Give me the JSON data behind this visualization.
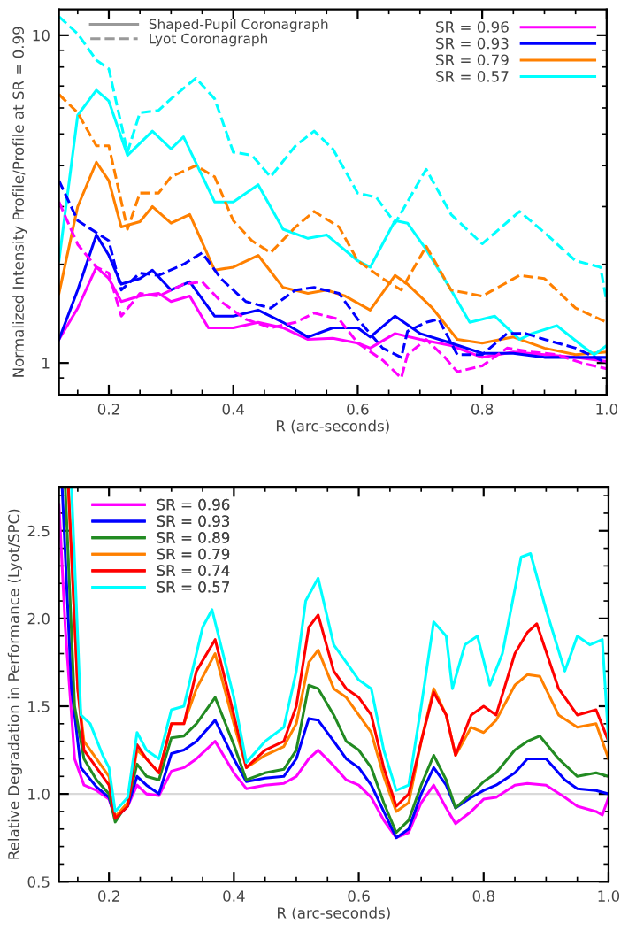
{
  "chart_data": [
    {
      "type": "line",
      "ylabel": "Normalized Intensity Profile/Profile at SR = 0.99",
      "xlabel": "R (arc-seconds)",
      "log": "y",
      "xlim": [
        0.12,
        1.0
      ],
      "ylim": [
        0.8,
        12
      ],
      "xticks": [
        0.2,
        0.4,
        0.6,
        0.8,
        {
          "value": 1,
          "label": "1.0"
        }
      ],
      "yticks": [
        1,
        10
      ],
      "grid": false,
      "legend": "top right",
      "annotations": [
        "Shaped-Pupil Coronagraph",
        "Lyot Coronagraph"
      ],
      "series": [
        {
          "name": "SR = 0.96",
          "color": "#ff00ff",
          "line_style": "solid",
          "x": [
            0.12,
            0.15,
            0.18,
            0.2,
            0.22,
            0.25,
            0.28,
            0.3,
            0.33,
            0.36,
            0.4,
            0.44,
            0.48,
            0.52,
            0.56,
            0.6,
            0.62,
            0.66,
            0.7,
            0.75,
            0.8,
            0.85,
            0.9,
            0.95,
            1.0
          ],
          "values": [
            1.18,
            1.47,
            1.96,
            1.81,
            1.54,
            1.6,
            1.63,
            1.54,
            1.6,
            1.28,
            1.28,
            1.33,
            1.28,
            1.18,
            1.19,
            1.15,
            1.11,
            1.23,
            1.18,
            1.13,
            1.04,
            1.08,
            1.06,
            1.04,
            1.01
          ]
        },
        {
          "name": "SR = 0.93",
          "color": "#0000ff",
          "line_style": "solid",
          "x": [
            0.12,
            0.15,
            0.18,
            0.2,
            0.22,
            0.25,
            0.27,
            0.3,
            0.33,
            0.37,
            0.4,
            0.44,
            0.48,
            0.52,
            0.56,
            0.6,
            0.62,
            0.66,
            0.7,
            0.75,
            0.8,
            0.85,
            0.9,
            0.95,
            1.0
          ],
          "values": [
            1.18,
            1.67,
            2.46,
            2.13,
            1.74,
            1.81,
            1.92,
            1.67,
            1.77,
            1.39,
            1.39,
            1.45,
            1.33,
            1.2,
            1.28,
            1.28,
            1.2,
            1.39,
            1.23,
            1.15,
            1.07,
            1.07,
            1.04,
            1.04,
            1.04
          ]
        },
        {
          "name": "SR = 0.79",
          "color": "#ff8000",
          "line_style": "solid",
          "x": [
            0.12,
            0.15,
            0.18,
            0.2,
            0.22,
            0.25,
            0.27,
            0.3,
            0.33,
            0.37,
            0.4,
            0.44,
            0.48,
            0.52,
            0.55,
            0.58,
            0.62,
            0.66,
            0.68,
            0.72,
            0.76,
            0.8,
            0.85,
            0.9,
            0.95,
            1.0
          ],
          "values": [
            1.63,
            3.0,
            4.1,
            3.6,
            2.6,
            2.7,
            3.0,
            2.67,
            2.84,
            1.92,
            1.96,
            2.13,
            1.7,
            1.63,
            1.67,
            1.6,
            1.45,
            1.85,
            1.74,
            1.47,
            1.18,
            1.15,
            1.2,
            1.11,
            1.06,
            1.08
          ]
        },
        {
          "name": "SR = 0.57",
          "color": "#00ffff",
          "line_style": "solid",
          "x": [
            0.12,
            0.15,
            0.18,
            0.2,
            0.23,
            0.27,
            0.3,
            0.32,
            0.37,
            0.4,
            0.44,
            0.48,
            0.52,
            0.55,
            0.6,
            0.62,
            0.66,
            0.68,
            0.71,
            0.75,
            0.78,
            0.82,
            0.86,
            0.88,
            0.92,
            0.96,
            0.98,
            1.0
          ],
          "values": [
            2.05,
            5.7,
            6.8,
            6.3,
            4.3,
            5.1,
            4.5,
            4.9,
            3.1,
            3.1,
            3.5,
            2.56,
            2.4,
            2.46,
            2.05,
            1.96,
            2.72,
            2.67,
            2.22,
            1.67,
            1.33,
            1.39,
            1.18,
            1.23,
            1.3,
            1.13,
            1.06,
            1.13
          ]
        },
        {
          "color": "#ff00ff",
          "line_style": "dashed",
          "x": [
            0.12,
            0.15,
            0.18,
            0.2,
            0.22,
            0.25,
            0.28,
            0.32,
            0.35,
            0.38,
            0.42,
            0.46,
            0.5,
            0.53,
            0.57,
            0.6,
            0.64,
            0.67,
            0.68,
            0.71,
            0.74,
            0.76,
            0.8,
            0.84,
            0.88,
            0.92,
            0.96,
            1.0
          ],
          "values": [
            3.1,
            2.3,
            1.96,
            1.88,
            1.39,
            1.63,
            1.6,
            1.74,
            1.77,
            1.54,
            1.36,
            1.28,
            1.33,
            1.42,
            1.36,
            1.15,
            1.02,
            0.9,
            1.06,
            1.18,
            1.04,
            0.94,
            0.98,
            1.11,
            1.08,
            1.06,
            1.0,
            0.96
          ]
        },
        {
          "color": "#0000ff",
          "line_style": "dashed",
          "x": [
            0.12,
            0.15,
            0.18,
            0.2,
            0.22,
            0.25,
            0.28,
            0.32,
            0.35,
            0.38,
            0.42,
            0.46,
            0.5,
            0.53,
            0.57,
            0.6,
            0.64,
            0.67,
            0.68,
            0.71,
            0.73,
            0.76,
            0.8,
            0.84,
            0.87,
            0.9,
            0.95,
            1.0
          ],
          "values": [
            3.6,
            2.72,
            2.5,
            2.36,
            1.67,
            1.88,
            1.85,
            2.0,
            2.17,
            1.81,
            1.54,
            1.47,
            1.67,
            1.7,
            1.63,
            1.36,
            1.11,
            1.04,
            1.25,
            1.33,
            1.36,
            1.06,
            1.06,
            1.23,
            1.23,
            1.18,
            1.11,
            1.0
          ]
        },
        {
          "color": "#ff8000",
          "line_style": "dashed",
          "x": [
            0.12,
            0.15,
            0.18,
            0.2,
            0.23,
            0.25,
            0.28,
            0.3,
            0.34,
            0.37,
            0.4,
            0.43,
            0.46,
            0.5,
            0.53,
            0.57,
            0.6,
            0.64,
            0.67,
            0.71,
            0.75,
            0.8,
            0.86,
            0.9,
            0.95,
            1.0
          ],
          "values": [
            6.6,
            5.8,
            4.6,
            4.6,
            2.56,
            3.3,
            3.3,
            3.7,
            4.0,
            3.7,
            2.72,
            2.36,
            2.17,
            2.6,
            2.9,
            2.6,
            2.05,
            1.81,
            1.67,
            2.27,
            1.67,
            1.6,
            1.85,
            1.81,
            1.47,
            1.33
          ]
        },
        {
          "color": "#00ffff",
          "line_style": "dashed",
          "x": [
            0.12,
            0.15,
            0.18,
            0.2,
            0.23,
            0.25,
            0.28,
            0.3,
            0.34,
            0.37,
            0.4,
            0.43,
            0.46,
            0.5,
            0.53,
            0.56,
            0.6,
            0.63,
            0.66,
            0.71,
            0.75,
            0.8,
            0.86,
            0.9,
            0.95,
            0.99,
            1.0
          ],
          "values": [
            11.4,
            10.1,
            8.4,
            7.9,
            4.4,
            5.8,
            5.9,
            6.4,
            7.4,
            6.4,
            4.4,
            4.3,
            3.7,
            4.6,
            5.1,
            4.5,
            3.3,
            3.2,
            2.67,
            3.9,
            2.84,
            2.31,
            2.9,
            2.5,
            2.05,
            1.96,
            1.54
          ]
        }
      ]
    },
    {
      "type": "line",
      "ylabel": "Relative Degradation in Performance (Lyot/SPC)",
      "xlabel": "R (arc-seconds)",
      "xlim": [
        0.12,
        1.0
      ],
      "ylim": [
        0.5,
        2.75
      ],
      "xticks": [
        0.2,
        0.4,
        0.6,
        0.8,
        {
          "value": 1,
          "label": "1.0"
        }
      ],
      "yticks": [
        0.5,
        {
          "value": 1,
          "label": "1.0"
        },
        1.5,
        {
          "value": 2,
          "label": "2.0"
        },
        2.5
      ],
      "grid": false,
      "legend": "top left",
      "ref_lines": [
        {
          "axis": "y",
          "value": 1.0,
          "color": "#d9d9d9"
        }
      ],
      "series": [
        {
          "name": "SR = 0.96",
          "color": "#ff00ff",
          "x": [
            0.12,
            0.13,
            0.145,
            0.16,
            0.18,
            0.2,
            0.21,
            0.23,
            0.245,
            0.26,
            0.28,
            0.3,
            0.32,
            0.34,
            0.37,
            0.4,
            0.42,
            0.45,
            0.48,
            0.5,
            0.52,
            0.535,
            0.56,
            0.58,
            0.6,
            0.62,
            0.64,
            0.66,
            0.68,
            0.7,
            0.72,
            0.74,
            0.755,
            0.78,
            0.8,
            0.82,
            0.85,
            0.87,
            0.9,
            0.93,
            0.95,
            0.98,
            0.99,
            1.0
          ],
          "values": [
            2.65,
            1.95,
            1.2,
            1.05,
            1.02,
            0.97,
            0.86,
            0.93,
            1.05,
            1.0,
            0.99,
            1.13,
            1.15,
            1.2,
            1.3,
            1.12,
            1.03,
            1.05,
            1.06,
            1.1,
            1.2,
            1.25,
            1.16,
            1.08,
            1.05,
            0.98,
            0.85,
            0.75,
            0.78,
            0.95,
            1.05,
            0.92,
            0.83,
            0.9,
            0.97,
            0.98,
            1.05,
            1.06,
            1.05,
            0.98,
            0.93,
            0.9,
            0.88,
            0.98
          ]
        },
        {
          "name": "SR = 0.93",
          "color": "#0000ff",
          "x": [
            0.125,
            0.14,
            0.155,
            0.18,
            0.2,
            0.21,
            0.23,
            0.245,
            0.26,
            0.28,
            0.3,
            0.32,
            0.34,
            0.37,
            0.4,
            0.42,
            0.45,
            0.48,
            0.5,
            0.52,
            0.535,
            0.56,
            0.58,
            0.6,
            0.62,
            0.64,
            0.66,
            0.68,
            0.7,
            0.72,
            0.74,
            0.755,
            0.78,
            0.8,
            0.82,
            0.85,
            0.87,
            0.9,
            0.93,
            0.95,
            0.98,
            1.0
          ],
          "values": [
            2.75,
            1.6,
            1.15,
            1.04,
            0.98,
            0.86,
            0.93,
            1.1,
            1.05,
            1.0,
            1.23,
            1.25,
            1.3,
            1.42,
            1.2,
            1.07,
            1.09,
            1.1,
            1.2,
            1.43,
            1.42,
            1.3,
            1.2,
            1.15,
            1.05,
            0.9,
            0.75,
            0.8,
            1.0,
            1.15,
            1.05,
            0.92,
            0.98,
            1.02,
            1.05,
            1.12,
            1.2,
            1.2,
            1.08,
            1.03,
            1.02,
            1.0
          ]
        },
        {
          "name": "SR = 0.89",
          "color": "#228b22",
          "x": [
            0.13,
            0.145,
            0.16,
            0.18,
            0.2,
            0.21,
            0.23,
            0.245,
            0.26,
            0.28,
            0.3,
            0.32,
            0.34,
            0.37,
            0.4,
            0.42,
            0.45,
            0.48,
            0.5,
            0.52,
            0.535,
            0.56,
            0.58,
            0.6,
            0.62,
            0.64,
            0.66,
            0.68,
            0.7,
            0.72,
            0.74,
            0.755,
            0.78,
            0.8,
            0.82,
            0.85,
            0.87,
            0.89,
            0.92,
            0.95,
            0.98,
            1.0
          ],
          "values": [
            2.75,
            1.5,
            1.2,
            1.08,
            1.0,
            0.84,
            0.95,
            1.17,
            1.1,
            1.08,
            1.32,
            1.33,
            1.4,
            1.55,
            1.28,
            1.08,
            1.12,
            1.14,
            1.25,
            1.62,
            1.6,
            1.45,
            1.3,
            1.25,
            1.15,
            0.95,
            0.78,
            0.85,
            1.05,
            1.22,
            1.08,
            0.92,
            1.0,
            1.07,
            1.12,
            1.25,
            1.3,
            1.33,
            1.2,
            1.1,
            1.12,
            1.1
          ]
        },
        {
          "name": "SR = 0.79",
          "color": "#ff8000",
          "x": [
            0.135,
            0.15,
            0.16,
            0.18,
            0.2,
            0.21,
            0.23,
            0.245,
            0.26,
            0.28,
            0.3,
            0.32,
            0.34,
            0.37,
            0.4,
            0.42,
            0.45,
            0.48,
            0.5,
            0.52,
            0.535,
            0.56,
            0.58,
            0.6,
            0.62,
            0.64,
            0.66,
            0.68,
            0.7,
            0.72,
            0.74,
            0.755,
            0.78,
            0.8,
            0.82,
            0.85,
            0.87,
            0.89,
            0.92,
            0.95,
            0.98,
            1.0
          ],
          "values": [
            2.75,
            1.6,
            1.3,
            1.2,
            1.1,
            0.87,
            0.95,
            1.25,
            1.2,
            1.12,
            1.4,
            1.4,
            1.6,
            1.8,
            1.4,
            1.15,
            1.22,
            1.27,
            1.4,
            1.75,
            1.82,
            1.6,
            1.55,
            1.45,
            1.35,
            1.1,
            0.9,
            0.95,
            1.3,
            1.6,
            1.45,
            1.22,
            1.38,
            1.35,
            1.42,
            1.62,
            1.68,
            1.67,
            1.45,
            1.38,
            1.4,
            1.2
          ]
        },
        {
          "name": "SR = 0.74",
          "color": "#ff0000",
          "x": [
            0.135,
            0.15,
            0.16,
            0.18,
            0.2,
            0.21,
            0.23,
            0.245,
            0.26,
            0.28,
            0.3,
            0.32,
            0.34,
            0.37,
            0.4,
            0.42,
            0.45,
            0.48,
            0.5,
            0.52,
            0.535,
            0.56,
            0.58,
            0.6,
            0.62,
            0.64,
            0.66,
            0.68,
            0.7,
            0.72,
            0.74,
            0.755,
            0.78,
            0.8,
            0.82,
            0.85,
            0.87,
            0.885,
            0.92,
            0.95,
            0.98,
            1.0
          ],
          "values": [
            2.75,
            1.6,
            1.25,
            1.15,
            1.05,
            0.86,
            0.93,
            1.28,
            1.2,
            1.12,
            1.4,
            1.4,
            1.7,
            1.88,
            1.45,
            1.15,
            1.25,
            1.3,
            1.5,
            1.95,
            2.02,
            1.7,
            1.6,
            1.55,
            1.45,
            1.15,
            0.93,
            1.0,
            1.3,
            1.58,
            1.45,
            1.22,
            1.45,
            1.5,
            1.45,
            1.8,
            1.92,
            1.97,
            1.6,
            1.45,
            1.48,
            1.3
          ]
        },
        {
          "name": "SR = 0.57",
          "color": "#00ffff",
          "x": [
            0.14,
            0.155,
            0.17,
            0.19,
            0.2,
            0.21,
            0.23,
            0.245,
            0.26,
            0.28,
            0.3,
            0.32,
            0.35,
            0.365,
            0.4,
            0.42,
            0.45,
            0.48,
            0.5,
            0.515,
            0.535,
            0.56,
            0.58,
            0.6,
            0.62,
            0.64,
            0.66,
            0.68,
            0.7,
            0.72,
            0.74,
            0.75,
            0.77,
            0.79,
            0.81,
            0.83,
            0.86,
            0.875,
            0.9,
            0.93,
            0.95,
            0.97,
            0.99,
            1.0
          ],
          "values": [
            2.75,
            1.45,
            1.4,
            1.22,
            1.15,
            0.9,
            0.98,
            1.35,
            1.25,
            1.2,
            1.48,
            1.5,
            1.95,
            2.05,
            1.55,
            1.18,
            1.3,
            1.38,
            1.7,
            2.1,
            2.23,
            1.85,
            1.75,
            1.65,
            1.6,
            1.25,
            1.02,
            1.05,
            1.5,
            1.98,
            1.9,
            1.6,
            1.85,
            1.9,
            1.62,
            1.8,
            2.35,
            2.37,
            2.05,
            1.7,
            1.9,
            1.85,
            1.88,
            1.3
          ]
        }
      ]
    }
  ]
}
